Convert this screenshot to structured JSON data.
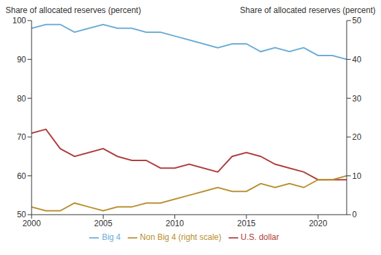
{
  "chart_data": {
    "type": "line",
    "y_label": "Share of allocated reserves (percent)",
    "y2_label": "Share of allocated reserves (percent)",
    "x": [
      2000,
      2001,
      2002,
      2003,
      2004,
      2005,
      2006,
      2007,
      2008,
      2009,
      2010,
      2011,
      2012,
      2013,
      2014,
      2015,
      2016,
      2017,
      2018,
      2019,
      2020,
      2021,
      2022
    ],
    "xlim": [
      2000,
      2022
    ],
    "xticks": [
      2000,
      2005,
      2010,
      2015,
      2020
    ],
    "ylim": [
      50,
      100
    ],
    "yticks": [
      50,
      60,
      70,
      80,
      90,
      100
    ],
    "y2lim": [
      0,
      50
    ],
    "y2ticks": [
      0,
      10,
      20,
      30,
      40,
      50
    ],
    "grid": false,
    "legend": "bottom",
    "series": [
      {
        "name": "Big 4",
        "color": "#6badd6",
        "values": [
          98,
          99,
          99,
          97,
          98,
          99,
          98,
          98,
          97,
          97,
          96,
          95,
          94,
          93,
          94,
          94,
          92,
          93,
          92,
          93,
          91,
          91,
          90
        ]
      },
      {
        "name": "U.S. dollar",
        "color": "#b03c3c",
        "values": [
          71,
          72,
          67,
          65,
          66,
          67,
          65,
          64,
          64,
          62,
          62,
          63,
          62,
          61,
          65,
          66,
          65,
          63,
          62,
          61,
          59,
          59,
          59
        ]
      },
      {
        "name": "Non Big 4 (right scale)",
        "color": "#b8902f",
        "axis": "y2",
        "values": [
          2,
          1,
          1,
          3,
          2,
          1,
          2,
          2,
          3,
          3,
          4,
          5,
          6,
          7,
          6,
          6,
          8,
          7,
          8,
          7,
          9,
          9,
          10
        ]
      }
    ]
  }
}
